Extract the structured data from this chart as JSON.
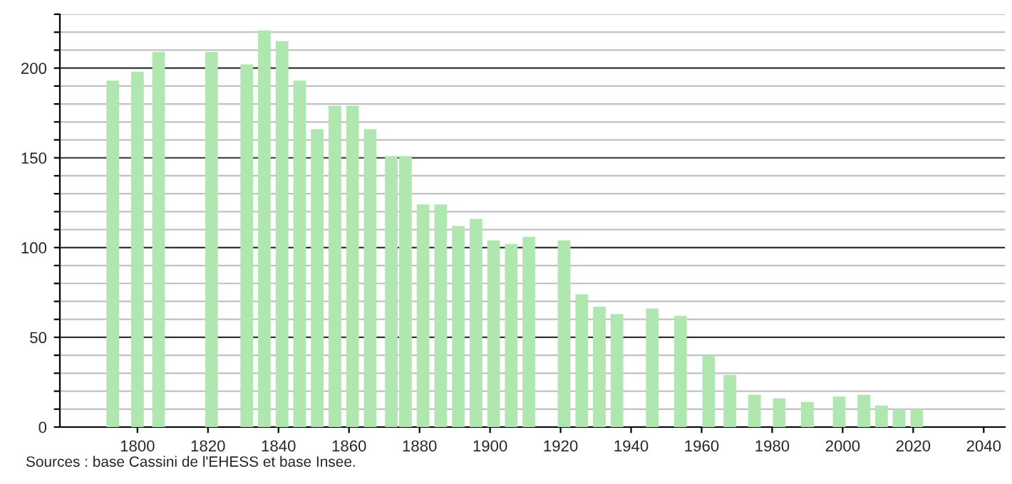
{
  "chart_data": {
    "type": "bar",
    "x": [
      1793,
      1800,
      1806,
      1821,
      1831,
      1836,
      1841,
      1846,
      1851,
      1856,
      1861,
      1866,
      1872,
      1876,
      1881,
      1886,
      1891,
      1896,
      1901,
      1906,
      1911,
      1921,
      1926,
      1931,
      1936,
      1946,
      1954,
      1962,
      1968,
      1975,
      1982,
      1990,
      1999,
      2006,
      2011,
      2016,
      2021
    ],
    "values": [
      193,
      198,
      209,
      209,
      202,
      221,
      215,
      193,
      166,
      179,
      179,
      166,
      151,
      151,
      124,
      124,
      112,
      116,
      104,
      102,
      106,
      104,
      74,
      67,
      63,
      66,
      62,
      40,
      29,
      18,
      16,
      14,
      17,
      18,
      12,
      10,
      10
    ],
    "color": "#b0e6b0",
    "xlim": [
      1778,
      2046
    ],
    "xticks": [
      1800,
      1820,
      1840,
      1860,
      1880,
      1900,
      1920,
      1940,
      1960,
      1980,
      2000,
      2020,
      2040
    ],
    "ylim": [
      0,
      230
    ],
    "yticks": [
      0,
      {
        "value": 10,
        "label": null
      },
      {
        "value": 20,
        "label": null
      },
      {
        "value": 30,
        "label": null
      },
      {
        "value": 40,
        "label": null
      },
      50,
      {
        "value": 60,
        "label": null
      },
      {
        "value": 70,
        "label": null
      },
      {
        "value": 80,
        "label": null
      },
      {
        "value": 90,
        "label": null
      },
      100,
      {
        "value": 110,
        "label": null
      },
      {
        "value": 120,
        "label": null
      },
      {
        "value": 130,
        "label": null
      },
      {
        "value": 140,
        "label": null
      },
      150,
      {
        "value": 160,
        "label": null
      },
      {
        "value": 170,
        "label": null
      },
      {
        "value": 180,
        "label": null
      },
      {
        "value": 190,
        "label": null
      },
      200,
      {
        "value": 210,
        "label": null
      },
      {
        "value": 220,
        "label": null
      },
      {
        "value": 230,
        "label": null
      }
    ],
    "grid": "y",
    "annotations": [
      "Sources : base Cassini de l'EHESS et base Insee."
    ]
  }
}
